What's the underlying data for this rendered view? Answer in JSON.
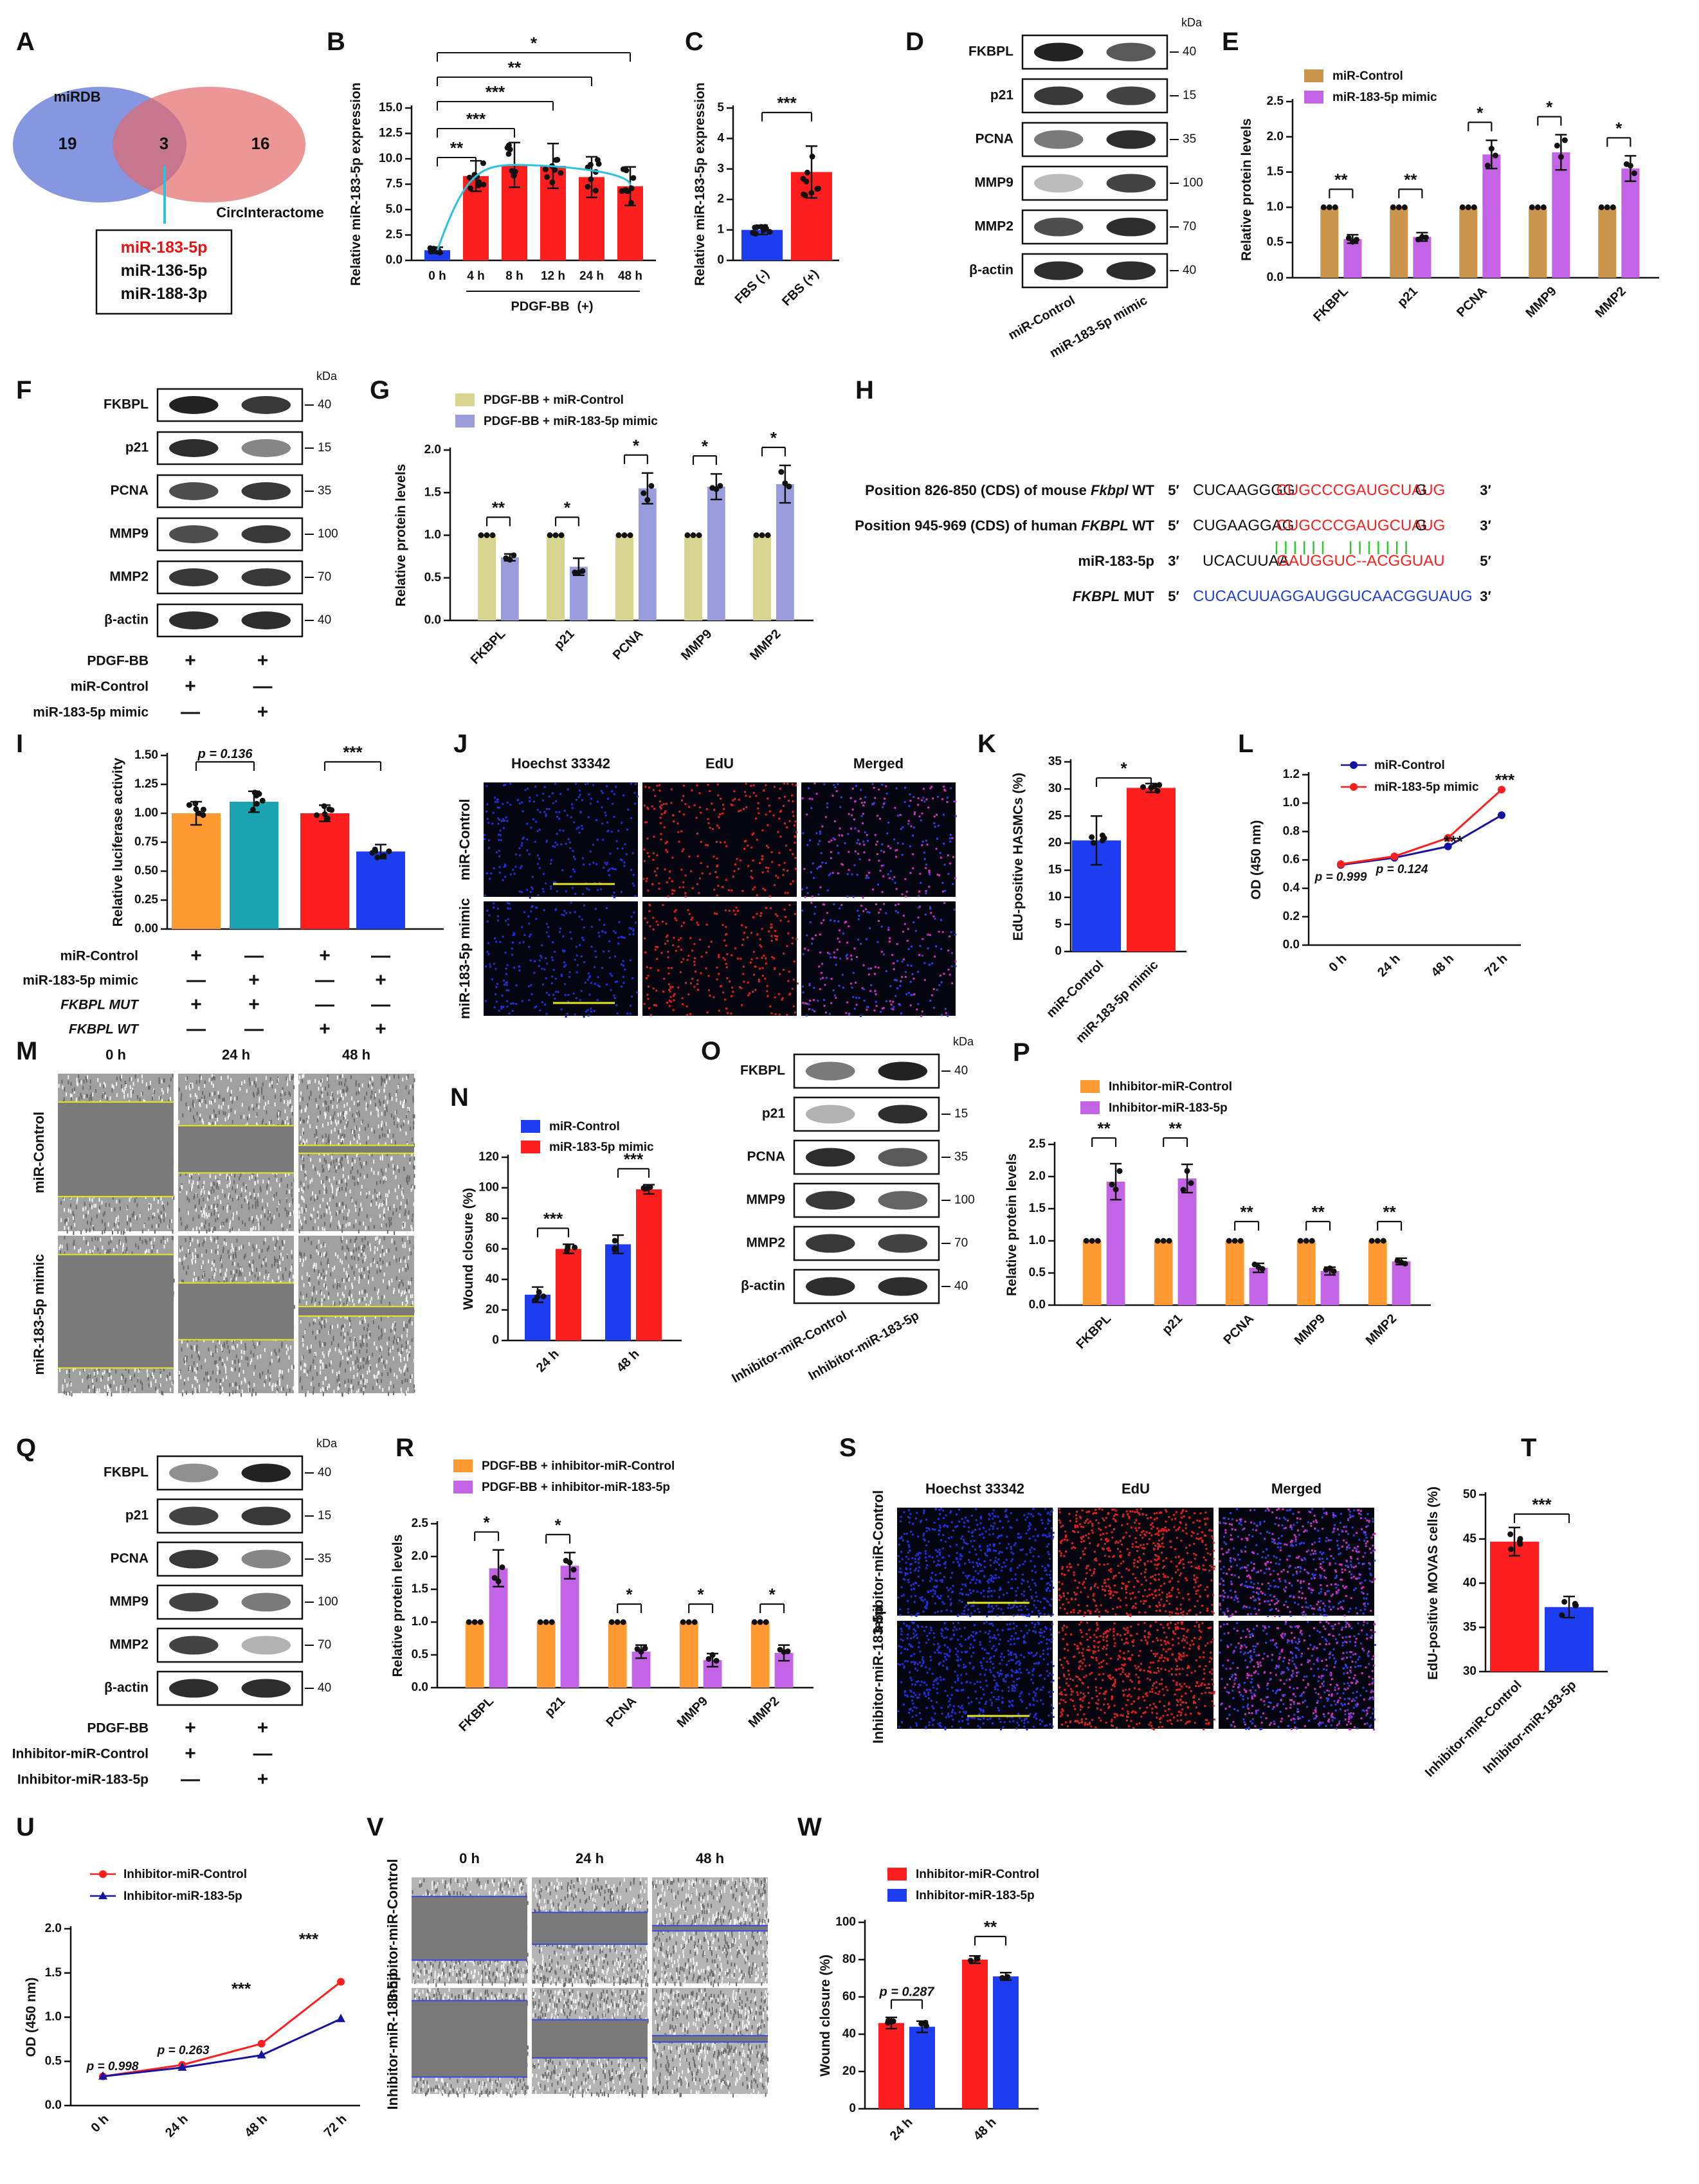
{
  "panel_letters": [
    "A",
    "B",
    "C",
    "D",
    "E",
    "F",
    "G",
    "H",
    "I",
    "J",
    "K",
    "L",
    "M",
    "N",
    "O",
    "P",
    "Q",
    "R",
    "S",
    "T",
    "U",
    "V",
    "W"
  ],
  "colors": {
    "red": "#FF1E1E",
    "blue": "#1E3CF0",
    "brown": "#C9954B",
    "purple": "#C364E6",
    "olive": "#D6D48E",
    "lavender": "#9A9CDC",
    "orange": "#FF9A32",
    "teal": "#1AA3B0",
    "cyan": "#29C3E0",
    "navy": "#1414A0",
    "blot": "#222"
  },
  "kda": "kDa",
  "panelA": {
    "set1": "miRDB",
    "set2": "CircInteractome",
    "n1": "19",
    "n12": "3",
    "n2": "16",
    "mirs": [
      "miR-183-5p",
      "miR-136-5p",
      "miR-188-3p"
    ]
  },
  "chart_data": [
    {
      "panel": "B",
      "type": "bar",
      "categories": [
        "0 h",
        "4 h",
        "8 h",
        "12 h",
        "24 h",
        "48 h"
      ],
      "values": [
        1.0,
        8.3,
        9.4,
        9.3,
        8.2,
        7.3
      ],
      "errors": [
        0.3,
        1.5,
        2.2,
        2.2,
        2.0,
        1.9
      ],
      "ylabel": "Relative miR-183-5p expression",
      "ylim": [
        0,
        15
      ],
      "yticks": [
        "0.0",
        "2.5",
        "5.0",
        "7.5",
        "10.0",
        "12.5",
        "15.0"
      ],
      "group_label": "PDGF-BB",
      "group_sign": "(+)",
      "sig": [
        "**",
        "***",
        "***",
        "**",
        "*"
      ],
      "curve": "cyan trend line"
    },
    {
      "panel": "C",
      "type": "bar",
      "categories": [
        "FBS (-)",
        "FBS (+)"
      ],
      "values": [
        1.0,
        2.9
      ],
      "errors": [
        0.15,
        0.85
      ],
      "ylabel": "Relative miR-183-5p expression",
      "ylim": [
        0,
        5
      ],
      "yticks": [
        "0",
        "1",
        "2",
        "3",
        "4",
        "5"
      ],
      "sig": "***"
    },
    {
      "panel": "E",
      "type": "bar",
      "categories": [
        "FKBPL",
        "p21",
        "PCNA",
        "MMP9",
        "MMP2"
      ],
      "series": [
        {
          "name": "miR-Control",
          "values": [
            1,
            1,
            1,
            1,
            1
          ]
        },
        {
          "name": "miR-183-5p mimic",
          "values": [
            0.55,
            0.58,
            1.75,
            1.78,
            1.55
          ]
        }
      ],
      "errors": [
        0.06,
        0.06,
        0.2,
        0.25,
        0.18
      ],
      "ylabel": "Relative protein levels",
      "ylim": [
        0,
        2.5
      ],
      "yticks": [
        "0.0",
        "0.5",
        "1.0",
        "1.5",
        "2.0",
        "2.5"
      ],
      "sig": [
        "**",
        "**",
        "*",
        "*",
        "*"
      ]
    },
    {
      "panel": "G",
      "type": "bar",
      "categories": [
        "FKBPL",
        "p21",
        "PCNA",
        "MMP9",
        "MMP2"
      ],
      "series": [
        {
          "name": "PDGF-BB + miR-Control",
          "values": [
            1,
            1,
            1,
            1,
            1
          ]
        },
        {
          "name": "PDGF-BB + miR-183-5p mimic",
          "values": [
            0.74,
            0.63,
            1.55,
            1.57,
            1.6
          ]
        }
      ],
      "errors": [
        0.04,
        0.1,
        0.18,
        0.15,
        0.22
      ],
      "ylabel": "Relative protein levels",
      "ylim": [
        0,
        2
      ],
      "yticks": [
        "0.0",
        "0.5",
        "1.0",
        "1.5",
        "2.0"
      ],
      "sig": [
        "**",
        "*",
        "*",
        "*",
        "*"
      ]
    },
    {
      "panel": "I",
      "type": "bar",
      "categories": [
        "FKBPL MUT + miR-Control",
        "FKBPL MUT + miR-183-5p mimic",
        "FKBPL WT + miR-Control",
        "FKBPL WT + miR-183-5p mimic"
      ],
      "values": [
        1.0,
        1.1,
        1.0,
        0.67
      ],
      "errors": [
        0.1,
        0.09,
        0.07,
        0.06
      ],
      "ylabel": "Relative luciferase activity",
      "ylim": [
        0,
        1.5
      ],
      "yticks": [
        "0.00",
        "0.25",
        "0.50",
        "0.75",
        "1.00",
        "1.25",
        "1.50"
      ],
      "sig": [
        "p = 0.136",
        "***"
      ]
    },
    {
      "panel": "K",
      "type": "bar",
      "categories": [
        "miR-Control",
        "miR-183-5p mimic"
      ],
      "values": [
        20.5,
        30.2
      ],
      "errors": [
        4.5,
        0.8
      ],
      "ylabel": "EdU-positive HASMCs (%)",
      "ylim": [
        0,
        35
      ],
      "yticks": [
        "0",
        "5",
        "10",
        "15",
        "20",
        "25",
        "30",
        "35"
      ],
      "sig": "*"
    },
    {
      "panel": "L",
      "type": "line",
      "x": [
        "0 h",
        "24 h",
        "48 h",
        "72 h"
      ],
      "series": [
        {
          "name": "miR-Control",
          "values": [
            0.565,
            0.615,
            0.695,
            0.915
          ]
        },
        {
          "name": "miR-183-5p mimic",
          "values": [
            0.57,
            0.625,
            0.755,
            1.095
          ]
        }
      ],
      "ylabel": "OD (450 nm)",
      "ylim": [
        0,
        1.2
      ],
      "yticks": [
        "0.0",
        "0.2",
        "0.4",
        "0.6",
        "0.8",
        "1.0",
        "1.2"
      ],
      "annotations": [
        "p = 0.999",
        "p = 0.124",
        "***",
        "***"
      ]
    },
    {
      "panel": "N",
      "type": "bar",
      "categories": [
        "24 h",
        "48 h"
      ],
      "series": [
        {
          "name": "miR-Control",
          "values": [
            30,
            63
          ]
        },
        {
          "name": "miR-183-5p mimic",
          "values": [
            60,
            99
          ]
        }
      ],
      "errors": [
        5,
        6
      ],
      "ylabel": "Wound closure (%)",
      "ylim": [
        0,
        120
      ],
      "yticks": [
        "0",
        "20",
        "40",
        "60",
        "80",
        "100",
        "120"
      ],
      "sig": [
        "***",
        "***"
      ]
    },
    {
      "panel": "P",
      "type": "bar",
      "categories": [
        "FKBPL",
        "p21",
        "PCNA",
        "MMP9",
        "MMP2"
      ],
      "series": [
        {
          "name": "Inhibitor-miR-Control",
          "values": [
            1,
            1,
            1,
            1,
            1
          ]
        },
        {
          "name": "Inhibitor-miR-183-5p",
          "values": [
            1.92,
            1.97,
            0.58,
            0.53,
            0.68
          ]
        }
      ],
      "errors": [
        0.28,
        0.22,
        0.07,
        0.06,
        0.05
      ],
      "ylabel": "Relative protein levels",
      "ylim": [
        0,
        2.5
      ],
      "yticks": [
        "0.0",
        "0.5",
        "1.0",
        "1.5",
        "2.0",
        "2.5"
      ],
      "sig": [
        "**",
        "**",
        "**",
        "**",
        "**"
      ]
    },
    {
      "panel": "R",
      "type": "bar",
      "categories": [
        "FKBPL",
        "p21",
        "PCNA",
        "MMP9",
        "MMP2"
      ],
      "series": [
        {
          "name": "PDGF-BB + inhibitor-miR-Control",
          "values": [
            1,
            1,
            1,
            1,
            1
          ]
        },
        {
          "name": "PDGF-BB + inhibitor-miR-183-5p",
          "values": [
            1.82,
            1.86,
            0.55,
            0.42,
            0.53
          ]
        }
      ],
      "errors": [
        0.28,
        0.2,
        0.1,
        0.1,
        0.12
      ],
      "ylabel": "Relative protein levels",
      "ylim": [
        0,
        2.5
      ],
      "yticks": [
        "0.0",
        "0.5",
        "1.0",
        "1.5",
        "2.0",
        "2.5"
      ],
      "sig": [
        "*",
        "*",
        "*",
        "*",
        "*"
      ]
    },
    {
      "panel": "T",
      "type": "bar",
      "categories": [
        "Inhibitor-miR-Control",
        "Inhibitor-miR-183-5p"
      ],
      "values": [
        44.7,
        37.3
      ],
      "errors": [
        1.6,
        1.2
      ],
      "ylabel": "EdU-positive MOVAS cells (%)",
      "ylim": [
        30,
        50
      ],
      "yticks": [
        "30",
        "35",
        "40",
        "45",
        "50"
      ],
      "sig": "***"
    },
    {
      "panel": "U",
      "type": "line",
      "x": [
        "0 h",
        "24 h",
        "48 h",
        "72 h"
      ],
      "series": [
        {
          "name": "Inhibitor-miR-Control",
          "values": [
            0.33,
            0.46,
            0.7,
            1.4
          ]
        },
        {
          "name": "Inhibitor-miR-183-5p",
          "values": [
            0.33,
            0.43,
            0.57,
            0.98
          ]
        }
      ],
      "ylabel": "OD (450 nm)",
      "ylim": [
        0,
        2
      ],
      "yticks": [
        "0.0",
        "0.5",
        "1.0",
        "1.5",
        "2.0"
      ],
      "annotations": [
        "p = 0.998",
        "p = 0.263",
        "***",
        "***"
      ]
    },
    {
      "panel": "W",
      "type": "bar",
      "categories": [
        "24 h",
        "48 h"
      ],
      "series": [
        {
          "name": "Inhibitor-miR-Control",
          "values": [
            46,
            80
          ]
        },
        {
          "name": "Inhibitor-miR-183-5p",
          "values": [
            44,
            71
          ]
        }
      ],
      "errors": [
        3,
        2
      ],
      "ylabel": "Wound closure (%)",
      "ylim": [
        0,
        100
      ],
      "yticks": [
        "0",
        "20",
        "40",
        "60",
        "80",
        "100"
      ],
      "sig": [
        "p = 0.287",
        "**"
      ]
    }
  ],
  "blots": {
    "D": {
      "rows": [
        "FKBPL",
        "p21",
        "PCNA",
        "MMP9",
        "MMP2",
        "β-actin"
      ],
      "kda": [
        "40",
        "15",
        "35",
        "100",
        "70",
        "40"
      ],
      "lanes": [
        "miR-Control",
        "miR-183-5p mimic"
      ]
    },
    "F": {
      "rows": [
        "FKBPL",
        "p21",
        "PCNA",
        "MMP9",
        "MMP2",
        "β-actin"
      ],
      "kda": [
        "40",
        "15",
        "35",
        "100",
        "70",
        "40"
      ],
      "treat": [
        {
          "label": "PDGF-BB",
          "s": [
            "+",
            "+"
          ]
        },
        {
          "label": "miR-Control",
          "s": [
            "+",
            "—"
          ]
        },
        {
          "label": "miR-183-5p mimic",
          "s": [
            "—",
            "+"
          ]
        }
      ]
    },
    "O": {
      "rows": [
        "FKBPL",
        "p21",
        "PCNA",
        "MMP9",
        "MMP2",
        "β-actin"
      ],
      "kda": [
        "40",
        "15",
        "35",
        "100",
        "70",
        "40"
      ],
      "lanes": [
        "Inhibitor-miR-Control",
        "Inhibitor-miR-183-5p"
      ]
    },
    "Q": {
      "rows": [
        "FKBPL",
        "p21",
        "PCNA",
        "MMP9",
        "MMP2",
        "β-actin"
      ],
      "kda": [
        "40",
        "15",
        "35",
        "100",
        "70",
        "40"
      ],
      "treat": [
        {
          "label": "PDGF-BB",
          "s": [
            "+",
            "+"
          ]
        },
        {
          "label": "Inhibitor-miR-Control",
          "s": [
            "+",
            "—"
          ]
        },
        {
          "label": "Inhibitor-miR-183-5p",
          "s": [
            "—",
            "+"
          ]
        }
      ]
    }
  },
  "panelH": {
    "r1": {
      "label": "Position 826-850 (CDS) of mouse ",
      "gene": "Fkbpl",
      "wt": " WT",
      "p5": "5′",
      "s1": "CUCAAGGGG",
      "s2": "CUGCCCGAUGCUAUG",
      "s3": "G",
      "p3": "3′"
    },
    "r2": {
      "label": "Position 945-969 (CDS) of human ",
      "gene": "FKBPL",
      "wt": " WT",
      "p5": "5′",
      "s1": "CUGAAGGAG",
      "s2": "CUGCCCGAUGCUAUG",
      "s3": "G",
      "p3": "3′"
    },
    "r3": {
      "label": "miR-183-5p",
      "p5": "3′",
      "s1": "UCACUUAA",
      "s2": "GAUGGUC--ACGGUAU",
      "p3": "5′"
    },
    "r4": {
      "gene": "FKBPL",
      "mut": " MUT",
      "p5": "5′",
      "seq": "CUCACUUAGGAUGGUCAACGGUAUG",
      "p3": "3′"
    }
  },
  "treatI": [
    {
      "label": "miR-Control",
      "s": [
        "+",
        "—",
        "+",
        "—"
      ]
    },
    {
      "label": "miR-183-5p mimic",
      "s": [
        "—",
        "+",
        "—",
        "+"
      ]
    },
    {
      "label": "FKBPL MUT",
      "s": [
        "+",
        "+",
        "—",
        "—"
      ]
    },
    {
      "label": "FKBPL WT",
      "s": [
        "—",
        "—",
        "+",
        "+"
      ]
    }
  ],
  "imgJ": {
    "cols": [
      "Hoechst 33342",
      "EdU",
      "Merged"
    ],
    "rows": [
      "miR-Control",
      "miR-183-5p mimic"
    ]
  },
  "imgM": {
    "cols": [
      "0 h",
      "24 h",
      "48 h"
    ],
    "rows": [
      "miR-Control",
      "miR-183-5p mimic"
    ]
  },
  "imgS": {
    "cols": [
      "Hoechst 33342",
      "EdU",
      "Merged"
    ],
    "rows": [
      "Inhibitor-miR-Control",
      "Inhibitor-miR-183-5p"
    ]
  },
  "imgV": {
    "cols": [
      "0 h",
      "24 h",
      "48 h"
    ],
    "rows": [
      "Inhibitor-miR-Control",
      "Inhibitor-miR-183-5p"
    ]
  }
}
